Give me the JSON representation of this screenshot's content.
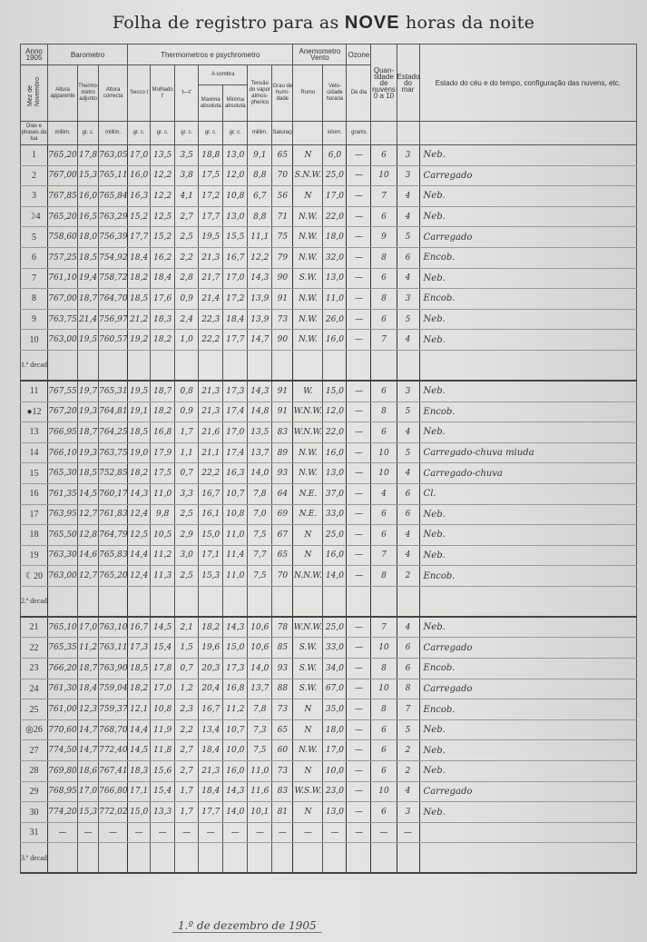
{
  "title_prefix": "Folha de registro para as",
  "title_emph": "NOVE",
  "title_suffix": "horas da noite",
  "header": {
    "anno": "Anno 1905",
    "mez_de": "Mez de",
    "mez": "Novembro",
    "dias": "Dias e phases da lua",
    "barometro": "Barometro",
    "thermometros": "Thermometros e psychrometro",
    "anemometro": "Anemometro",
    "vento": "Vento",
    "ozone": "Ozone",
    "altura_apparente": "Altura apparente",
    "thermometro_adjunto": "Thermo-metro adjunto",
    "altura_correcta": "Altura correcta",
    "secco": "Secco t",
    "molhado": "Molhado t'",
    "diff": "t—t'",
    "a_sombra": "A sombra",
    "maxima": "Maxima absoluta",
    "minima": "Minima absoluta",
    "tensao": "Tensão do vapor atmos-pherico",
    "humidade": "Grau de humi-dade",
    "rumo": "Rumo",
    "velocidade": "Velo-cidade horaria",
    "de_dia": "De dia",
    "quantidade": "Quan-tidade de nuvens 0 a 10",
    "estado_mar": "Estado do mar",
    "estado_ceu": "Estado do céu e do tempo, configuração das nuvens, etc.",
    "u_millim": "millim.",
    "u_grc": "gr. c.",
    "u_umid": "Saturação=100",
    "u_kilom": "kilom.",
    "u_gramas": "grams"
  },
  "decade_labels": [
    "1.ª decada",
    "2.ª decada",
    "3.ª decada"
  ],
  "rows": [
    [
      "1",
      "765,20",
      "17,8",
      "763,05",
      "17,0",
      "13,5",
      "3,5",
      "18,8",
      "13,0",
      "9,1",
      "65",
      "N",
      "6,0",
      "—",
      "6",
      "3",
      "Neb."
    ],
    [
      "2",
      "767,00",
      "15,3",
      "765,11",
      "16,0",
      "12,2",
      "3,8",
      "17,5",
      "12,0",
      "8,8",
      "70",
      "S.N.W.",
      "25,0",
      "—",
      "10",
      "3",
      "Carregado"
    ],
    [
      "3",
      "767,85",
      "16,0",
      "765,84",
      "16,3",
      "12,2",
      "4,1",
      "17,2",
      "10,8",
      "6,7",
      "56",
      "N",
      "17,0",
      "—",
      "7",
      "4",
      "Neb."
    ],
    [
      "☽4",
      "765,20",
      "16,5",
      "763,29",
      "15,2",
      "12,5",
      "2,7",
      "17,7",
      "13,0",
      "8,8",
      "71",
      "N.W.",
      "22,0",
      "—",
      "6",
      "4",
      "Neb."
    ],
    [
      "5",
      "758,60",
      "18,0",
      "756,39",
      "17,7",
      "15,2",
      "2,5",
      "19,5",
      "15,5",
      "11,1",
      "75",
      "N.W.",
      "18,0",
      "—",
      "9",
      "5",
      "Carregado"
    ],
    [
      "6",
      "757,25",
      "18,5",
      "754,92",
      "18,4",
      "16,2",
      "2,2",
      "21,3",
      "16,7",
      "12,2",
      "79",
      "N.W.",
      "32,0",
      "—",
      "8",
      "6",
      "Encob."
    ],
    [
      "7",
      "761,10",
      "19,4",
      "758,72",
      "18,2",
      "18,4",
      "2,8",
      "21,7",
      "17,0",
      "14,3",
      "90",
      "S.W.",
      "13,0",
      "—",
      "6",
      "4",
      "Neb."
    ],
    [
      "8",
      "767,00",
      "18,7",
      "764,70",
      "18,5",
      "17,6",
      "0,9",
      "21,4",
      "17,2",
      "13,9",
      "91",
      "N.W.",
      "11,0",
      "—",
      "8",
      "3",
      "Encob."
    ],
    [
      "9",
      "763,75",
      "21,4",
      "756,97",
      "21,2",
      "18,3",
      "2,4",
      "22,3",
      "18,4",
      "13,9",
      "73",
      "N.W.",
      "26,0",
      "—",
      "6",
      "5",
      "Neb."
    ],
    [
      "10",
      "763,00",
      "19,5",
      "760,57",
      "19,2",
      "18,2",
      "1,0",
      "22,2",
      "17,7",
      "14,7",
      "90",
      "N.W.",
      "16,0",
      "—",
      "7",
      "4",
      "Neb."
    ],
    [
      "11",
      "767,55",
      "19,7",
      "765,31",
      "19,5",
      "18,7",
      "0,8",
      "21,3",
      "17,3",
      "14,3",
      "91",
      "W.",
      "15,0",
      "—",
      "6",
      "3",
      "Neb."
    ],
    [
      "●12",
      "767,20",
      "19,3",
      "764,81",
      "19,1",
      "18,2",
      "0,9",
      "21,3",
      "17,4",
      "14,8",
      "91",
      "W.N.W.",
      "12,0",
      "—",
      "8",
      "5",
      "Encob."
    ],
    [
      "13",
      "766,95",
      "18,7",
      "764,25",
      "18,5",
      "16,8",
      "1,7",
      "21,6",
      "17,0",
      "13,5",
      "83",
      "W.N.W.",
      "22,0",
      "—",
      "6",
      "4",
      "Neb."
    ],
    [
      "14",
      "766,10",
      "19,3",
      "763,75",
      "19,0",
      "17,9",
      "1,1",
      "21,1",
      "17,4",
      "13,7",
      "89",
      "N.W.",
      "16,0",
      "—",
      "10",
      "5",
      "Carregado-chuva miuda"
    ],
    [
      "15",
      "765,30",
      "18,5",
      "752,85",
      "18,2",
      "17,5",
      "0,7",
      "22,2",
      "16,3",
      "14,0",
      "93",
      "N.W.",
      "13,0",
      "—",
      "10",
      "4",
      "Carregado-chuva"
    ],
    [
      "16",
      "761,35",
      "14,5",
      "760,17",
      "14,3",
      "11,0",
      "3,3",
      "16,7",
      "10,7",
      "7,8",
      "64",
      "N.E.",
      "37,0",
      "—",
      "4",
      "6",
      "Cl."
    ],
    [
      "17",
      "763,95",
      "12,7",
      "761,83",
      "12,4",
      "9,8",
      "2,5",
      "16,1",
      "10,8",
      "7,0",
      "69",
      "N.E.",
      "33,0",
      "—",
      "6",
      "6",
      "Neb."
    ],
    [
      "18",
      "765,50",
      "12,8",
      "764,79",
      "12,5",
      "10,5",
      "2,9",
      "15,0",
      "11,0",
      "7,5",
      "67",
      "N",
      "25,0",
      "—",
      "6",
      "4",
      "Neb."
    ],
    [
      "19",
      "763,30",
      "14,6",
      "765,83",
      "14,4",
      "11,2",
      "3,0",
      "17,1",
      "11,4",
      "7,7",
      "65",
      "N",
      "16,0",
      "—",
      "7",
      "4",
      "Neb."
    ],
    [
      "☾20",
      "763,00",
      "12,7",
      "765,20",
      "12,4",
      "11,3",
      "2,5",
      "15,3",
      "11,0",
      "7,5",
      "70",
      "N.N.W.",
      "14,0",
      "—",
      "8",
      "2",
      "Encob."
    ],
    [
      "21",
      "765,10",
      "17,0",
      "763,10",
      "16,7",
      "14,5",
      "2,1",
      "18,2",
      "14,3",
      "10,6",
      "78",
      "W.N.W.",
      "25,0",
      "—",
      "7",
      "4",
      "Neb."
    ],
    [
      "22",
      "765,35",
      "11,2",
      "763,11",
      "17,3",
      "15,4",
      "1,5",
      "19,6",
      "15,0",
      "10,6",
      "85",
      "S.W.",
      "33,0",
      "—",
      "10",
      "6",
      "Carregado"
    ],
    [
      "23",
      "766,20",
      "18,7",
      "763,90",
      "18,5",
      "17,8",
      "0,7",
      "20,3",
      "17,3",
      "14,0",
      "93",
      "S.W.",
      "34,0",
      "—",
      "8",
      "6",
      "Encob."
    ],
    [
      "24",
      "761,30",
      "18,4",
      "759,04",
      "18,2",
      "17,0",
      "1,2",
      "20,4",
      "16,8",
      "13,7",
      "88",
      "S.W.",
      "67,0",
      "—",
      "10",
      "8",
      "Carregado"
    ],
    [
      "25",
      "761,00",
      "12,3",
      "759,37",
      "12,1",
      "10,8",
      "2,3",
      "16,7",
      "11,2",
      "7,8",
      "73",
      "N",
      "35,0",
      "—",
      "8",
      "7",
      "Encob."
    ],
    [
      "◎26",
      "770,60",
      "14,7",
      "768,70",
      "14,4",
      "11,9",
      "2,2",
      "13,4",
      "10,7",
      "7,3",
      "65",
      "N",
      "18,0",
      "—",
      "6",
      "5",
      "Neb."
    ],
    [
      "27",
      "774,50",
      "14,7",
      "772,40",
      "14,5",
      "11,8",
      "2,7",
      "18,4",
      "10,0",
      "7,5",
      "60",
      "N.W.",
      "17,0",
      "—",
      "6",
      "2",
      "Neb."
    ],
    [
      "28",
      "769,80",
      "18,6",
      "767,41",
      "18,3",
      "15,6",
      "2,7",
      "21,3",
      "16,0",
      "11,0",
      "73",
      "N",
      "10,0",
      "—",
      "6",
      "2",
      "Neb."
    ],
    [
      "29",
      "768,95",
      "17,0",
      "766,80",
      "17,1",
      "15,4",
      "1,7",
      "18,4",
      "14,3",
      "11,6",
      "83",
      "W.S.W.",
      "23,0",
      "—",
      "10",
      "4",
      "Carregado"
    ],
    [
      "30",
      "774,20",
      "15,3",
      "772,02",
      "15,0",
      "13,3",
      "1,7",
      "17,7",
      "14,0",
      "10,1",
      "81",
      "N",
      "13,0",
      "—",
      "6",
      "3",
      "Neb."
    ],
    [
      "31",
      "—",
      "—",
      "—",
      "—",
      "—",
      "—",
      "—",
      "—",
      "—",
      "—",
      "—",
      "—",
      "—",
      "—",
      "—",
      ""
    ]
  ],
  "signature": "1.º de dezembro de 1905"
}
